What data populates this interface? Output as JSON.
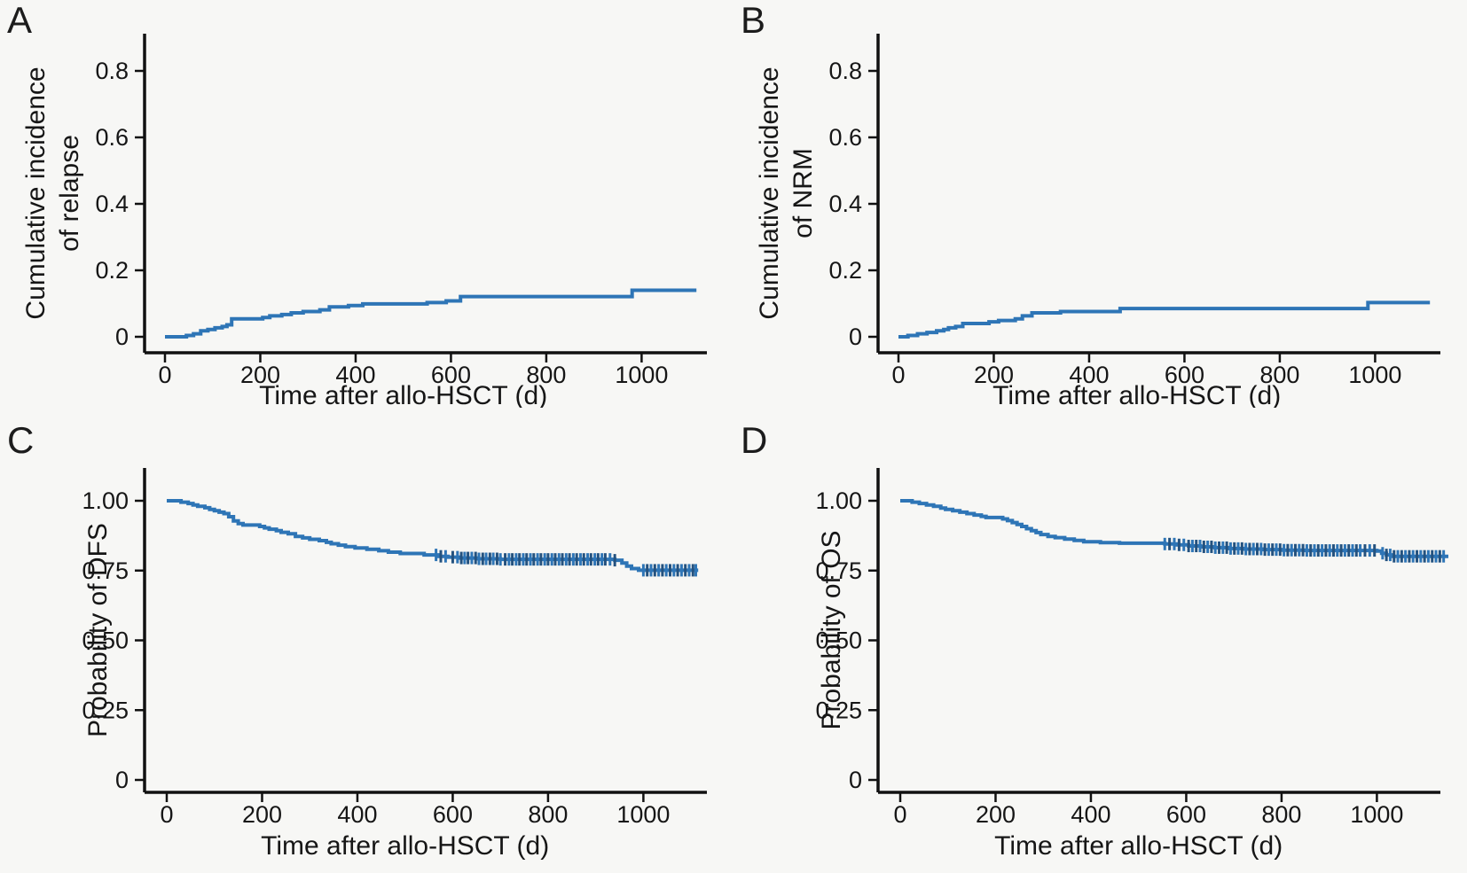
{
  "figure": {
    "background": "#f7f7f5",
    "axis_color": "#111111",
    "line_color": "#2e75b6",
    "censor_colors": [
      "#2e75b6",
      "#24527f"
    ],
    "xlabel": "Time after allo-HSCT (d)"
  },
  "chart_data": [
    {
      "panel_label": "A",
      "type": "line",
      "subtype": "cumulative-incidence-step-curve",
      "ylabel_lines": [
        "Cumulative incidence",
        "of relapse"
      ],
      "xlabel": "Time after allo-HSCT (d)",
      "x_tick_values": [
        0,
        200,
        400,
        600,
        800,
        1000
      ],
      "x_tick_labels": [
        "0",
        "200",
        "400",
        "600",
        "800",
        "1000"
      ],
      "y_tick_values": [
        0,
        0.2,
        0.4,
        0.6,
        0.8
      ],
      "y_tick_labels": [
        "0",
        "0.2",
        "0.4",
        "0.6",
        "0.8"
      ],
      "xlim": [
        0,
        1140
      ],
      "ylim": [
        0,
        0.9
      ],
      "grid": false,
      "legend": "none",
      "step_points": [
        [
          0,
          0
        ],
        [
          45,
          0.004
        ],
        [
          60,
          0.009
        ],
        [
          75,
          0.018
        ],
        [
          90,
          0.022
        ],
        [
          105,
          0.027
        ],
        [
          120,
          0.031
        ],
        [
          130,
          0.036
        ],
        [
          140,
          0.054
        ],
        [
          205,
          0.058
        ],
        [
          220,
          0.063
        ],
        [
          245,
          0.067
        ],
        [
          265,
          0.072
        ],
        [
          290,
          0.076
        ],
        [
          325,
          0.081
        ],
        [
          345,
          0.09
        ],
        [
          385,
          0.094
        ],
        [
          415,
          0.099
        ],
        [
          550,
          0.103
        ],
        [
          590,
          0.108
        ],
        [
          620,
          0.121
        ],
        [
          980,
          0.14
        ],
        [
          1115,
          0.14
        ]
      ],
      "censor_times": []
    },
    {
      "panel_label": "B",
      "type": "line",
      "subtype": "cumulative-incidence-step-curve",
      "ylabel_lines": [
        "Cumulative incidence",
        "of NRM"
      ],
      "xlabel": "Time after allo-HSCT (d)",
      "x_tick_values": [
        0,
        200,
        400,
        600,
        800,
        1000
      ],
      "x_tick_labels": [
        "0",
        "200",
        "400",
        "600",
        "800",
        "1000"
      ],
      "y_tick_values": [
        0,
        0.2,
        0.4,
        0.6,
        0.8
      ],
      "y_tick_labels": [
        "0",
        "0.2",
        "0.4",
        "0.6",
        "0.8"
      ],
      "xlim": [
        0,
        1140
      ],
      "ylim": [
        0,
        0.9
      ],
      "grid": false,
      "legend": "none",
      "step_points": [
        [
          0,
          0
        ],
        [
          20,
          0.004
        ],
        [
          40,
          0.009
        ],
        [
          60,
          0.013
        ],
        [
          80,
          0.018
        ],
        [
          95,
          0.022
        ],
        [
          105,
          0.027
        ],
        [
          120,
          0.031
        ],
        [
          135,
          0.04
        ],
        [
          190,
          0.045
        ],
        [
          210,
          0.049
        ],
        [
          245,
          0.054
        ],
        [
          260,
          0.063
        ],
        [
          280,
          0.072
        ],
        [
          340,
          0.076
        ],
        [
          465,
          0.085
        ],
        [
          985,
          0.103
        ],
        [
          1115,
          0.103
        ]
      ],
      "censor_times": []
    },
    {
      "panel_label": "C",
      "type": "line",
      "subtype": "kaplan-meier-survival-curve",
      "ylabel_lines": [
        "Probability of DFS"
      ],
      "xlabel": "Time after allo-HSCT (d)",
      "x_tick_values": [
        0,
        200,
        400,
        600,
        800,
        1000
      ],
      "x_tick_labels": [
        "0",
        "200",
        "400",
        "600",
        "800",
        "1000"
      ],
      "y_tick_values": [
        0,
        0.25,
        0.5,
        0.75,
        1.0
      ],
      "y_tick_labels": [
        "0",
        "0.25",
        "0.50",
        "0.75",
        "1.00"
      ],
      "xlim": [
        0,
        1140
      ],
      "ylim": [
        0,
        1.1
      ],
      "grid": false,
      "legend": "none",
      "step_points": [
        [
          0,
          1.0
        ],
        [
          30,
          0.995
        ],
        [
          45,
          0.99
        ],
        [
          55,
          0.985
        ],
        [
          65,
          0.98
        ],
        [
          80,
          0.975
        ],
        [
          90,
          0.969
        ],
        [
          100,
          0.964
        ],
        [
          110,
          0.959
        ],
        [
          120,
          0.954
        ],
        [
          130,
          0.943
        ],
        [
          140,
          0.928
        ],
        [
          150,
          0.918
        ],
        [
          160,
          0.913
        ],
        [
          195,
          0.908
        ],
        [
          205,
          0.903
        ],
        [
          215,
          0.898
        ],
        [
          230,
          0.893
        ],
        [
          240,
          0.887
        ],
        [
          255,
          0.882
        ],
        [
          270,
          0.872
        ],
        [
          285,
          0.867
        ],
        [
          300,
          0.862
        ],
        [
          320,
          0.857
        ],
        [
          335,
          0.851
        ],
        [
          345,
          0.846
        ],
        [
          360,
          0.841
        ],
        [
          375,
          0.836
        ],
        [
          395,
          0.831
        ],
        [
          420,
          0.826
        ],
        [
          445,
          0.821
        ],
        [
          465,
          0.816
        ],
        [
          490,
          0.811
        ],
        [
          540,
          0.806
        ],
        [
          570,
          0.801
        ],
        [
          590,
          0.798
        ],
        [
          615,
          0.795
        ],
        [
          650,
          0.792
        ],
        [
          700,
          0.79
        ],
        [
          940,
          0.787
        ],
        [
          955,
          0.777
        ],
        [
          965,
          0.766
        ],
        [
          975,
          0.757
        ],
        [
          990,
          0.751
        ],
        [
          1115,
          0.751
        ]
      ],
      "censor_times": [
        565,
        575,
        585,
        600,
        610,
        618,
        625,
        632,
        640,
        648,
        655,
        663,
        670,
        678,
        685,
        693,
        700,
        710,
        718,
        725,
        733,
        740,
        748,
        755,
        763,
        770,
        778,
        785,
        793,
        800,
        808,
        815,
        823,
        830,
        838,
        845,
        853,
        860,
        868,
        875,
        883,
        890,
        898,
        905,
        913,
        920,
        930,
        940,
        1000,
        1008,
        1016,
        1024,
        1032,
        1040,
        1048,
        1056,
        1064,
        1072,
        1080,
        1088,
        1096,
        1104,
        1110
      ]
    },
    {
      "panel_label": "D",
      "type": "line",
      "subtype": "kaplan-meier-survival-curve",
      "ylabel_lines": [
        "Probability of OS"
      ],
      "xlabel": "Time after allo-HSCT (d)",
      "x_tick_values": [
        0,
        200,
        400,
        600,
        800,
        1000
      ],
      "x_tick_labels": [
        "0",
        "200",
        "400",
        "600",
        "800",
        "1000"
      ],
      "y_tick_values": [
        0,
        0.25,
        0.5,
        0.75,
        1.0
      ],
      "y_tick_labels": [
        "0",
        "0.25",
        "0.50",
        "0.75",
        "1.00"
      ],
      "xlim": [
        0,
        1160
      ],
      "ylim": [
        0,
        1.1
      ],
      "grid": false,
      "legend": "none",
      "step_points": [
        [
          0,
          1.0
        ],
        [
          25,
          0.995
        ],
        [
          40,
          0.99
        ],
        [
          55,
          0.985
        ],
        [
          70,
          0.98
        ],
        [
          85,
          0.974
        ],
        [
          95,
          0.969
        ],
        [
          110,
          0.964
        ],
        [
          125,
          0.959
        ],
        [
          140,
          0.954
        ],
        [
          155,
          0.949
        ],
        [
          170,
          0.944
        ],
        [
          180,
          0.94
        ],
        [
          215,
          0.935
        ],
        [
          225,
          0.929
        ],
        [
          235,
          0.922
        ],
        [
          245,
          0.915
        ],
        [
          255,
          0.908
        ],
        [
          265,
          0.9
        ],
        [
          275,
          0.893
        ],
        [
          285,
          0.886
        ],
        [
          295,
          0.879
        ],
        [
          310,
          0.872
        ],
        [
          325,
          0.868
        ],
        [
          345,
          0.863
        ],
        [
          365,
          0.858
        ],
        [
          385,
          0.853
        ],
        [
          420,
          0.85
        ],
        [
          460,
          0.848
        ],
        [
          555,
          0.845
        ],
        [
          580,
          0.842
        ],
        [
          605,
          0.838
        ],
        [
          630,
          0.835
        ],
        [
          660,
          0.832
        ],
        [
          690,
          0.829
        ],
        [
          720,
          0.827
        ],
        [
          760,
          0.825
        ],
        [
          800,
          0.823
        ],
        [
          850,
          0.822
        ],
        [
          1000,
          0.82
        ],
        [
          1010,
          0.812
        ],
        [
          1020,
          0.806
        ],
        [
          1030,
          0.801
        ],
        [
          1150,
          0.801
        ]
      ],
      "censor_times": [
        555,
        565,
        575,
        585,
        595,
        605,
        613,
        621,
        629,
        637,
        645,
        653,
        661,
        669,
        677,
        685,
        693,
        701,
        709,
        717,
        725,
        733,
        741,
        749,
        757,
        765,
        773,
        781,
        789,
        797,
        805,
        813,
        821,
        829,
        837,
        845,
        853,
        861,
        869,
        877,
        885,
        893,
        901,
        909,
        917,
        925,
        933,
        941,
        949,
        957,
        965,
        975,
        985,
        995,
        1012,
        1020,
        1028,
        1036,
        1044,
        1052,
        1060,
        1068,
        1076,
        1084,
        1092,
        1100,
        1108,
        1116,
        1124,
        1132,
        1140
      ]
    }
  ]
}
